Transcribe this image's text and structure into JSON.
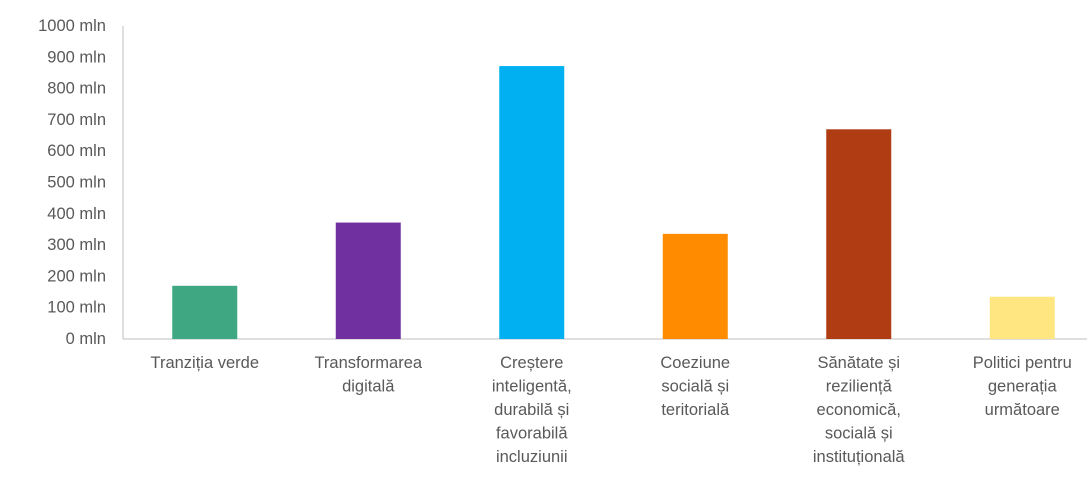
{
  "chart_data": {
    "type": "bar",
    "categories": [
      [
        "Tranziția verde"
      ],
      [
        "Transformarea",
        "digitală"
      ],
      [
        "Creștere",
        "inteligentă,",
        "durabilă și",
        "favorabilă",
        "incluziunii"
      ],
      [
        "Coeziune",
        "socială și",
        "teritorială"
      ],
      [
        "Sănătate și",
        "reziliență",
        "economică,",
        "socială și",
        "instituțională"
      ],
      [
        "Politici pentru",
        "generația",
        "următoare"
      ]
    ],
    "values": [
      170,
      372,
      872,
      336,
      670,
      135
    ],
    "colors": [
      "#3fa882",
      "#7030a0",
      "#00b0f0",
      "#ff8c00",
      "#b03c14",
      "#ffe680"
    ],
    "ylim": [
      0,
      1000
    ],
    "yticks": [
      0,
      100,
      200,
      300,
      400,
      500,
      600,
      700,
      800,
      900,
      1000
    ],
    "ytick_suffix": " mln",
    "title": "",
    "xlabel": "",
    "ylabel": "",
    "grid": false,
    "legend": "none"
  }
}
